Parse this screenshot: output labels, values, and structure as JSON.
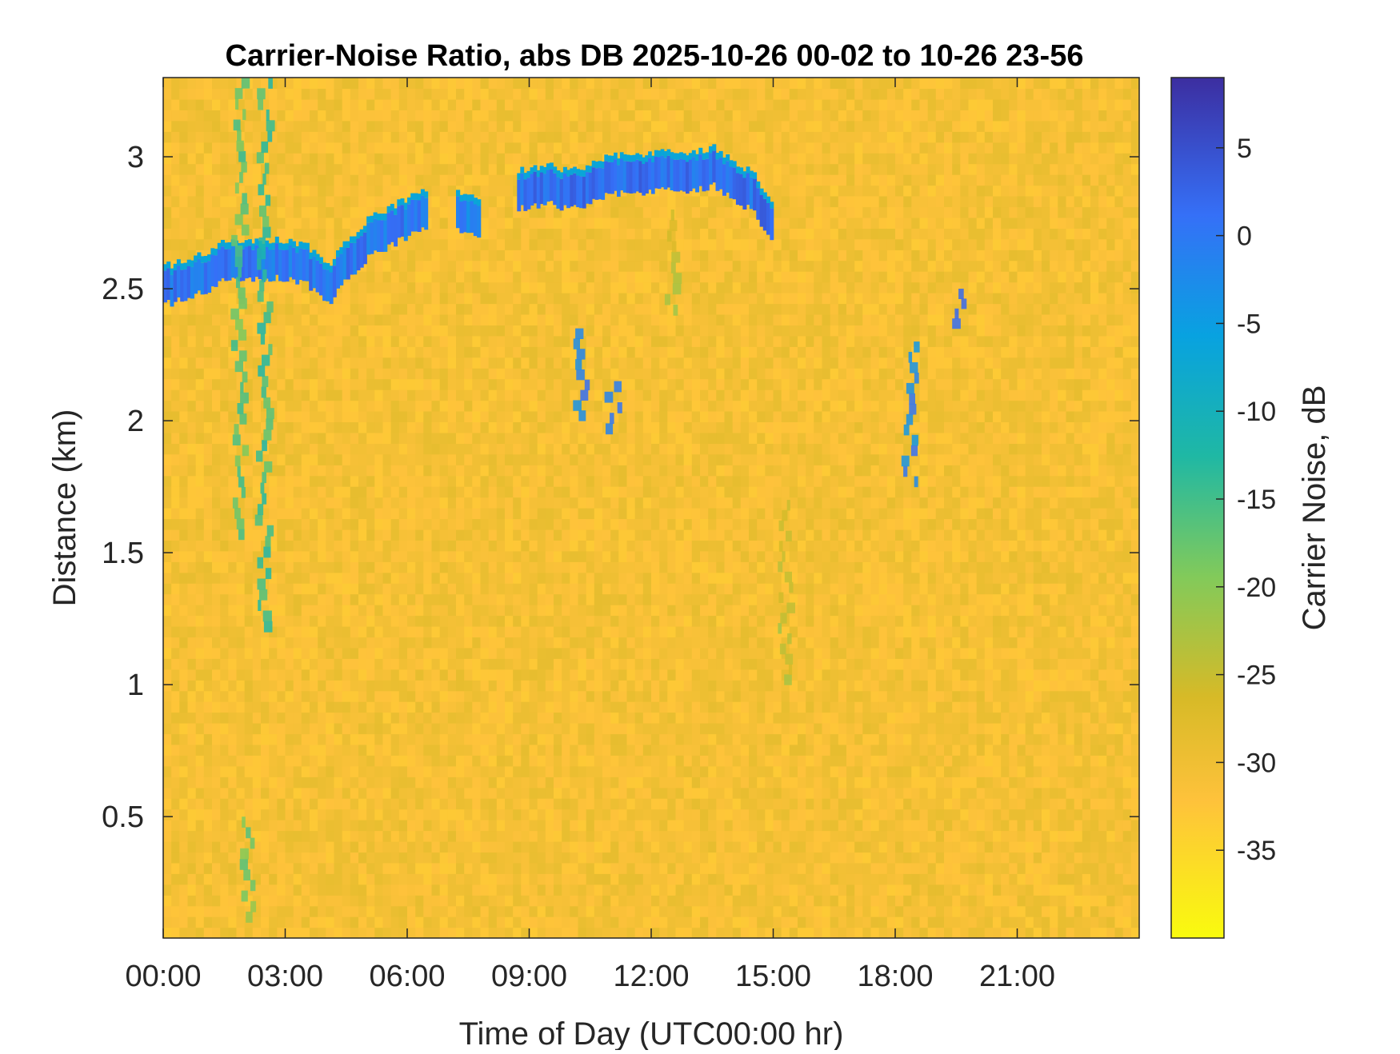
{
  "chart_data": {
    "type": "heatmap",
    "title": "Carrier-Noise Ratio, abs DB 2025-10-26 00-02 to 10-26 23-56",
    "xlabel": "Time of Day (UTC00:00 hr)",
    "ylabel": "Distance (km)",
    "colorbar_label": "Carrier Noise, dB",
    "x_ticks": [
      {
        "value": 0,
        "label": "00:00"
      },
      {
        "value": 3,
        "label": "03:00"
      },
      {
        "value": 6,
        "label": "06:00"
      },
      {
        "value": 9,
        "label": "09:00"
      },
      {
        "value": 12,
        "label": "12:00"
      },
      {
        "value": 15,
        "label": "15:00"
      },
      {
        "value": 18,
        "label": "18:00"
      },
      {
        "value": 21,
        "label": "21:00"
      }
    ],
    "y_ticks": [
      {
        "value": 0.5,
        "label": "0.5"
      },
      {
        "value": 1,
        "label": "1"
      },
      {
        "value": 1.5,
        "label": "1.5"
      },
      {
        "value": 2,
        "label": "2"
      },
      {
        "value": 2.5,
        "label": "2.5"
      },
      {
        "value": 3,
        "label": "3"
      }
    ],
    "c_ticks": [
      {
        "value": 5,
        "label": "5"
      },
      {
        "value": 0,
        "label": "0"
      },
      {
        "value": -5,
        "label": "-5"
      },
      {
        "value": -10,
        "label": "-10"
      },
      {
        "value": -15,
        "label": "-15"
      },
      {
        "value": -20,
        "label": "-20"
      },
      {
        "value": -25,
        "label": "-25"
      },
      {
        "value": -30,
        "label": "-30"
      },
      {
        "value": -35,
        "label": "-35"
      }
    ],
    "xlim": [
      0,
      24
    ],
    "ylim": [
      0.04,
      3.3
    ],
    "clim": [
      -40,
      9
    ],
    "colormap": "parula-reversed",
    "background_cnr_db": -32,
    "features": [
      {
        "kind": "layer",
        "time_hr": [
          0,
          0.5,
          1,
          1.5,
          2,
          2.5,
          3,
          3.5,
          4,
          4.5,
          5,
          5.5,
          6,
          6.5
        ],
        "distance_km": [
          2.5,
          2.52,
          2.55,
          2.6,
          2.6,
          2.6,
          2.6,
          2.58,
          2.5,
          2.6,
          2.68,
          2.72,
          2.76,
          2.8
        ],
        "cnr_db": 2
      },
      {
        "kind": "layer",
        "time_hr": [
          7.2,
          7.8
        ],
        "distance_km": [
          2.78,
          2.76
        ],
        "cnr_db": 0
      },
      {
        "kind": "layer",
        "time_hr": [
          8.7,
          9.5,
          10,
          11,
          12,
          13,
          13.5,
          14,
          14.5,
          15
        ],
        "distance_km": [
          2.86,
          2.88,
          2.86,
          2.92,
          2.93,
          2.93,
          2.95,
          2.9,
          2.85,
          2.72
        ],
        "cnr_db": 3
      },
      {
        "kind": "blob",
        "time_hr": 1.9,
        "distance_km": [
          1.55,
          3.3
        ],
        "cnr_db": -18
      },
      {
        "kind": "blob",
        "time_hr": 2.5,
        "distance_km": [
          1.2,
          3.3
        ],
        "cnr_db": -16
      },
      {
        "kind": "blob",
        "time_hr": 10.3,
        "distance_km": [
          2.0,
          2.35
        ],
        "cnr_db": -2
      },
      {
        "kind": "blob",
        "time_hr": 11.1,
        "distance_km": [
          1.95,
          2.15
        ],
        "cnr_db": 0
      },
      {
        "kind": "blob",
        "time_hr": 18.4,
        "distance_km": [
          1.75,
          2.3
        ],
        "cnr_db": -3
      },
      {
        "kind": "blob",
        "time_hr": 19.6,
        "distance_km": [
          2.35,
          2.5
        ],
        "cnr_db": 0
      },
      {
        "kind": "blob",
        "time_hr": 15.3,
        "distance_km": [
          1.0,
          1.7
        ],
        "cnr_db": -25
      },
      {
        "kind": "blob",
        "time_hr": 12.5,
        "distance_km": [
          2.4,
          2.8
        ],
        "cnr_db": -26
      },
      {
        "kind": "blob",
        "time_hr": 2.1,
        "distance_km": [
          0.1,
          0.5
        ],
        "cnr_db": -20
      }
    ],
    "grid": false,
    "legend": "colorbar-right"
  }
}
